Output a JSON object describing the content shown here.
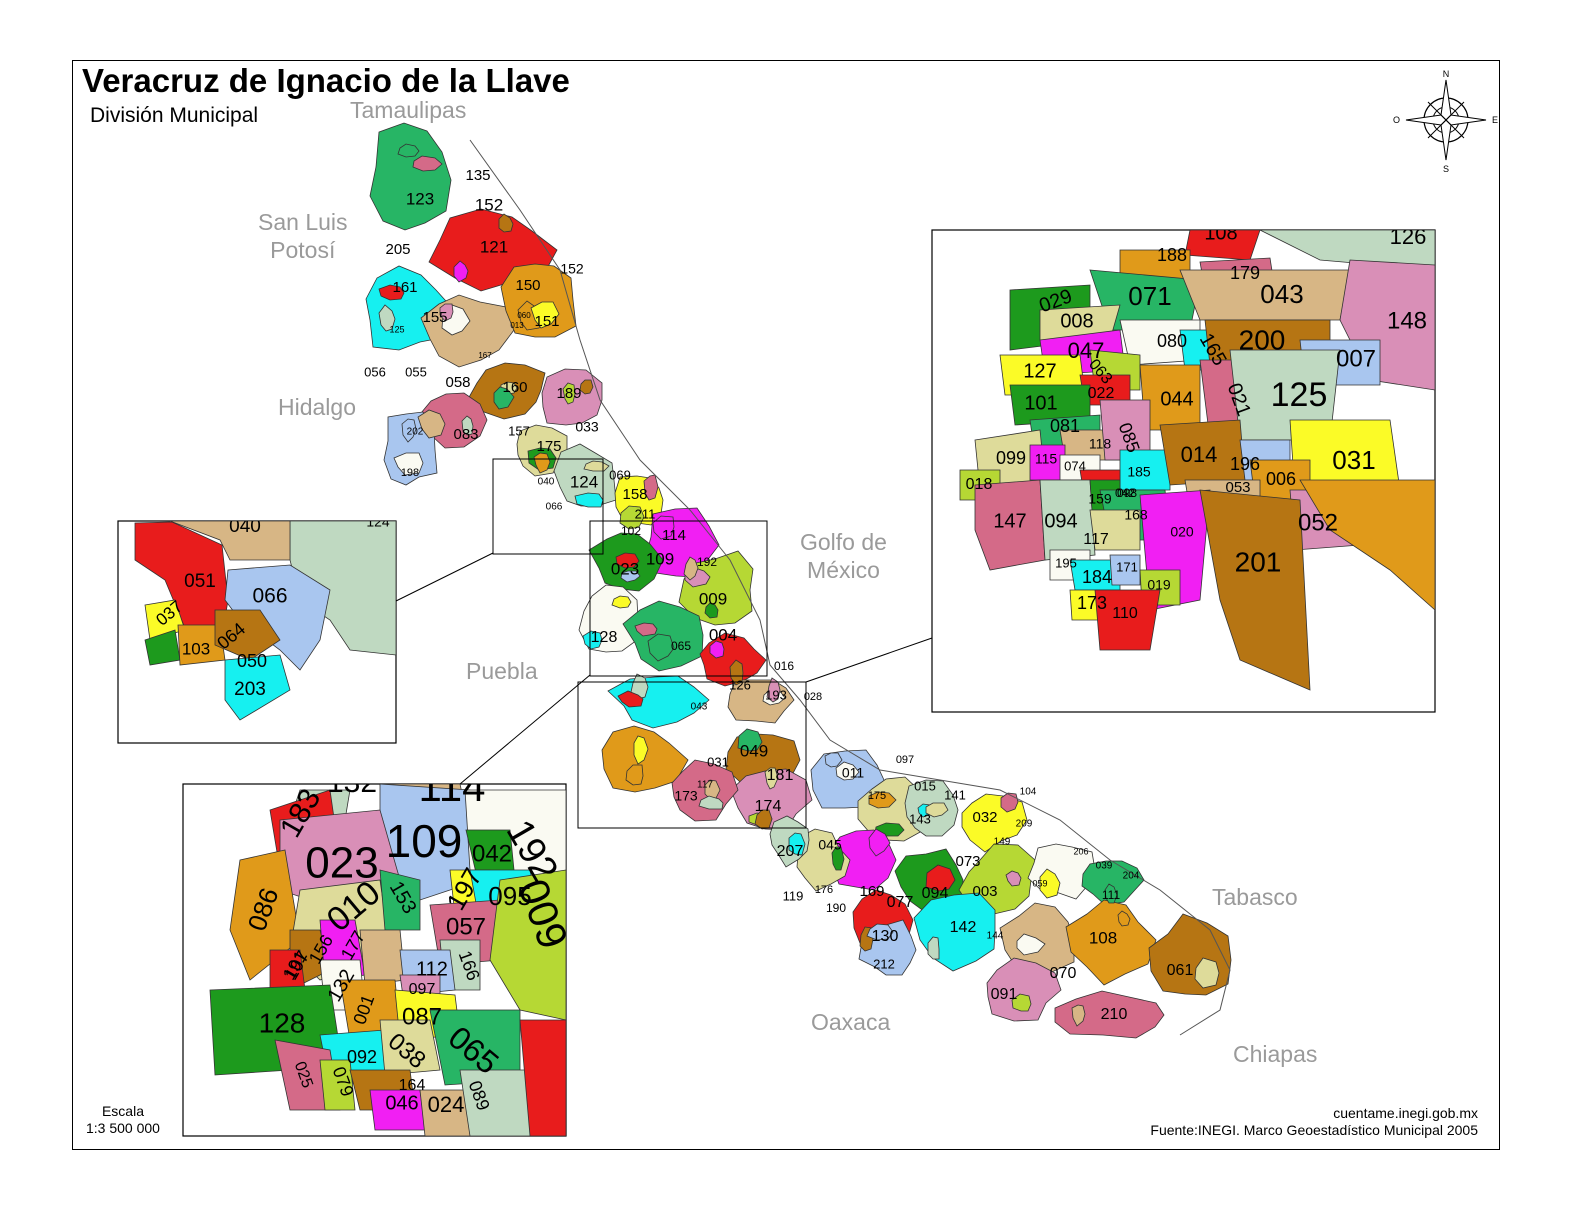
{
  "title": "Veracruz de Ignacio de la Llave",
  "subtitle": "División Municipal",
  "neighbors": [
    {
      "label": "Tamaulipas"
    },
    {
      "label": "San Luis\nPotosí"
    },
    {
      "label": "Hidalgo"
    },
    {
      "label": "Puebla"
    },
    {
      "label": "Golfo de\nMéxico"
    },
    {
      "label": "Tabasco"
    },
    {
      "label": "Oaxaca"
    },
    {
      "label": "Chiapas"
    }
  ],
  "compass": {
    "n": "N",
    "s": "S",
    "e": "E",
    "w": "O"
  },
  "scale": {
    "label": "Escala",
    "value": "1:3 500 000"
  },
  "source": {
    "site": "cuentame.inegi.gob.mx",
    "credit": "Fuente:INEGI. Marco Geoestadístico Municipal 2005"
  },
  "colors": {
    "green": "#27b565",
    "red": "#e81c1c",
    "cyan": "#16f0f0",
    "tan": "#d7b685",
    "orange": "#e09a1a",
    "brown": "#b67513",
    "pink": "#d98fb7",
    "rose": "#d46a88",
    "lightblue": "#a9c6ef",
    "khaki": "#dedb9a",
    "sage": "#bfd9c1",
    "yellow": "#fbfb27",
    "magenta": "#f11ff3",
    "darkgreen": "#1d9a1d",
    "lime": "#b6d834",
    "white": "#fafaf2"
  },
  "main_labels": [
    "123",
    "135",
    "152",
    "121",
    "152",
    "205",
    "161",
    "150",
    "155",
    "151",
    "125",
    "060",
    "013",
    "167",
    "056",
    "055",
    "058",
    "160",
    "189",
    "202",
    "157",
    "083",
    "175",
    "033",
    "198",
    "124",
    "069",
    "158",
    "040",
    "066",
    "211",
    "102",
    "114",
    "023",
    "109",
    "192",
    "009",
    "004",
    "128",
    "065",
    "016",
    "126",
    "193",
    "028",
    "043",
    "049",
    "031",
    "181",
    "174",
    "173",
    "117",
    "011",
    "097",
    "175",
    "015",
    "141",
    "104",
    "143",
    "032",
    "209",
    "207",
    "045",
    "149",
    "206",
    "039",
    "204",
    "073",
    "003",
    "059",
    "111",
    "119",
    "176",
    "190",
    "169",
    "077",
    "094",
    "142",
    "144",
    "130",
    "212",
    "108",
    "070",
    "061",
    "091",
    "210"
  ],
  "inset_top_labels": [
    "108",
    "188",
    "179",
    "126",
    "029",
    "071",
    "043",
    "148",
    "008",
    "047",
    "080",
    "165",
    "200",
    "007",
    "127",
    "063",
    "022",
    "044",
    "021",
    "125",
    "101",
    "081",
    "118",
    "085",
    "099",
    "115",
    "074",
    "185",
    "014",
    "196",
    "031",
    "018",
    "042",
    "053",
    "006",
    "147",
    "094",
    "098",
    "168",
    "052",
    "117",
    "020",
    "201",
    "195",
    "184",
    "171",
    "173",
    "019",
    "110",
    "159"
  ],
  "inset_left_labels": [
    "040",
    "124",
    "051",
    "066",
    "037",
    "064",
    "103",
    "050",
    "203"
  ],
  "inset_bottom_labels": [
    "114",
    "132",
    "183",
    "109",
    "192",
    "023",
    "042",
    "086",
    "197",
    "095",
    "010",
    "153",
    "057",
    "009",
    "107",
    "156",
    "177",
    "166",
    "191",
    "112",
    "132",
    "097",
    "128",
    "001",
    "087",
    "092",
    "038",
    "065",
    "025",
    "079",
    "164",
    "046",
    "024",
    "089"
  ]
}
